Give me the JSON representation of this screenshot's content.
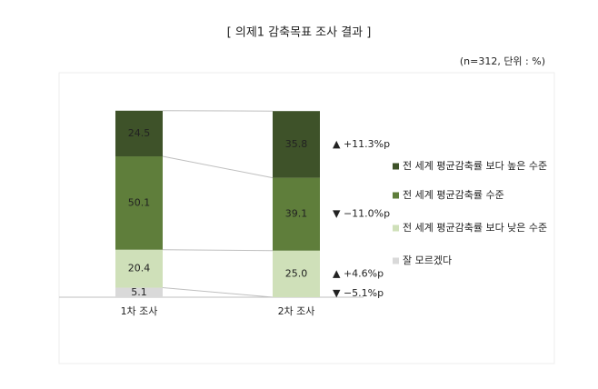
{
  "chart_data": {
    "type": "stacked-bar",
    "title": "[  의제1  감축목표  조사  결과  ]",
    "subtitle": "(n=312, 단위 : %)",
    "categories": [
      "1차 조사",
      "2차 조사"
    ],
    "series": [
      {
        "name": "전 세계 평균감축률 보다 높은 수준",
        "color": "#3e5229",
        "values": [
          24.5,
          35.8
        ]
      },
      {
        "name": "전 세계 평균감축률 수준",
        "color": "#5f7e3b",
        "values": [
          50.1,
          39.1
        ]
      },
      {
        "name": "전 세계 평균감축률 보다 낮은 수준",
        "color": "#cfe0b9",
        "values": [
          20.4,
          25.0
        ],
        "value_labels": [
          "20.4",
          "25.0"
        ]
      },
      {
        "name": "잘 모르겠다",
        "color": "#d9d9d9",
        "values": [
          5.1,
          0
        ]
      }
    ],
    "annotations": [
      "▲ +11.3%p",
      "▼ −11.0%p",
      "▲ +4.6%p",
      "▼ −5.1%p"
    ]
  }
}
